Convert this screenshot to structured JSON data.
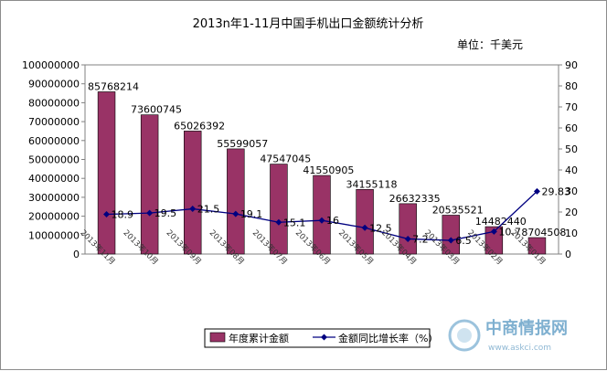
{
  "chart_data": {
    "type": "bar",
    "title": "2013n年1-11月中国手机出口金额统计分析",
    "unit_label": "单位：千美元",
    "categories": [
      "2013年11月",
      "2013年10月",
      "2013年09月",
      "2013年08月",
      "2013年07月",
      "2013年06月",
      "2013年05月",
      "2013年04月",
      "2013年03月",
      "2013年02月",
      "2013年01月"
    ],
    "series": [
      {
        "name": "年度累计金额",
        "axis": "left",
        "values": [
          85768214,
          73600745,
          65026392,
          55599057,
          47547045,
          41550905,
          34155118,
          26632335,
          20535521,
          14482440,
          8704508
        ],
        "labels": [
          "85768214",
          "73600745",
          "65026392",
          "55599057",
          "47547045",
          "41550905",
          "34155118",
          "26632335",
          "20535521",
          "14482440",
          "8704508"
        ],
        "color": "#993366"
      },
      {
        "name": "金额同比增长率（%）",
        "axis": "right",
        "values": [
          18.9,
          19.5,
          21.5,
          19.1,
          15.1,
          16,
          12.5,
          7.2,
          6.5,
          10.7,
          29.83
        ],
        "labels": [
          "18.9",
          "19.5",
          "21.5",
          "19.1",
          "15.1",
          "16",
          "12.5",
          "7.2",
          "6.5",
          "10.7",
          "29.83"
        ],
        "color": "#000080"
      }
    ],
    "ylim_left": [
      0,
      100000000
    ],
    "yticks_left": [
      "0",
      "10000000",
      "20000000",
      "30000000",
      "40000000",
      "50000000",
      "60000000",
      "70000000",
      "80000000",
      "90000000",
      "100000000"
    ],
    "ylim_right": [
      0,
      90
    ],
    "yticks_right": [
      "0",
      "10",
      "20",
      "30",
      "40",
      "50",
      "60",
      "70",
      "80",
      "90"
    ],
    "grid": false,
    "legend_position": "bottom",
    "plot_background": "#ffffff"
  },
  "watermark": {
    "name": "中商情报网",
    "url": "www.askci.com",
    "color": "#7fb0d0"
  }
}
